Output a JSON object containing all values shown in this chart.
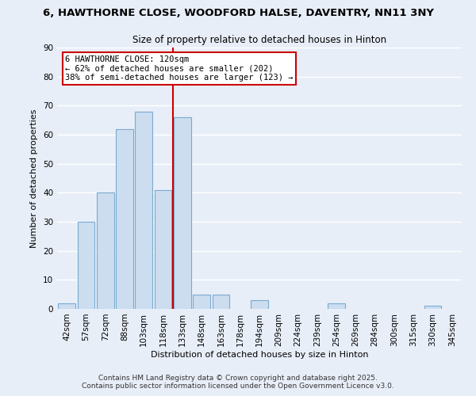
{
  "title": "6, HAWTHORNE CLOSE, WOODFORD HALSE, DAVENTRY, NN11 3NY",
  "subtitle": "Size of property relative to detached houses in Hinton",
  "xlabel": "Distribution of detached houses by size in Hinton",
  "ylabel": "Number of detached properties",
  "bar_color": "#ccddf0",
  "bar_edge_color": "#7aaad0",
  "categories": [
    "42sqm",
    "57sqm",
    "72sqm",
    "88sqm",
    "103sqm",
    "118sqm",
    "133sqm",
    "148sqm",
    "163sqm",
    "178sqm",
    "194sqm",
    "209sqm",
    "224sqm",
    "239sqm",
    "254sqm",
    "269sqm",
    "284sqm",
    "300sqm",
    "315sqm",
    "330sqm",
    "345sqm"
  ],
  "values": [
    2,
    30,
    40,
    62,
    68,
    41,
    66,
    5,
    5,
    0,
    3,
    0,
    0,
    0,
    2,
    0,
    0,
    0,
    0,
    1,
    0
  ],
  "vline_x_index": 5,
  "vline_color": "#cc0000",
  "annotation_line1": "6 HAWTHORNE CLOSE: 120sqm",
  "annotation_line2": "← 62% of detached houses are smaller (202)",
  "annotation_line3": "38% of semi-detached houses are larger (123) →",
  "annotation_box_color": "#ffffff",
  "annotation_box_edge": "#cc0000",
  "ylim": [
    0,
    90
  ],
  "yticks": [
    0,
    10,
    20,
    30,
    40,
    50,
    60,
    70,
    80,
    90
  ],
  "footer1": "Contains HM Land Registry data © Crown copyright and database right 2025.",
  "footer2": "Contains public sector information licensed under the Open Government Licence v3.0.",
  "background_color": "#e8eef8",
  "grid_color": "#ffffff",
  "title_fontsize": 9.5,
  "subtitle_fontsize": 8.5,
  "axis_label_fontsize": 8.0,
  "tick_fontsize": 7.5,
  "annotation_fontsize": 7.5,
  "footer_fontsize": 6.5
}
